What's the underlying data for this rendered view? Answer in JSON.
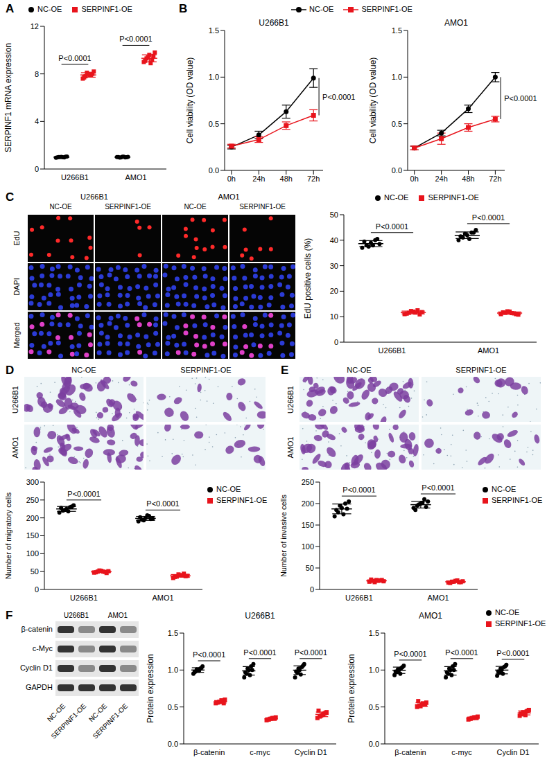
{
  "chart_data": [
    {
      "panel": "A",
      "type": "dot",
      "categories": [
        "U266B1",
        "AMO1"
      ],
      "ylabel": "SERPINF1 mRNA expression",
      "ylim": [
        0,
        12
      ],
      "yticks": [
        0,
        4,
        8,
        12
      ],
      "annotations": [
        "P<0.0001",
        "P<0.0001"
      ],
      "legend": "top",
      "series": [
        {
          "name": "NC-OE",
          "color": "#000000",
          "marker": "circle",
          "values": [
            [
              0.95,
              1.0,
              1.02,
              0.98,
              1.05,
              0.97,
              1.01,
              0.99,
              1.03
            ],
            [
              1.0,
              0.96,
              1.04,
              0.98,
              1.02,
              1.0,
              0.97,
              1.03,
              0.99
            ]
          ]
        },
        {
          "name": "SERPINF1-OE",
          "color": "#e8141c",
          "marker": "square",
          "values": [
            [
              7.6,
              7.8,
              8.0,
              7.9,
              8.2,
              7.7,
              8.1,
              7.9,
              8.0
            ],
            [
              9.0,
              9.3,
              9.6,
              9.2,
              9.8,
              9.1,
              9.4,
              8.9,
              9.5
            ]
          ]
        }
      ]
    },
    {
      "panel": "B",
      "type": "line",
      "title": "U266B1",
      "categories": [
        "0h",
        "24h",
        "48h",
        "72h"
      ],
      "ylabel": "Cell viability (OD value)",
      "ylim": [
        0,
        1.5
      ],
      "yticks": [
        {
          "value": 0,
          "label": "0.0"
        },
        {
          "value": 0.5,
          "label": "0.5"
        },
        {
          "value": 1,
          "label": "1.0"
        },
        {
          "value": 1.5,
          "label": "1.5"
        }
      ],
      "annotations": [
        "P<0.0001"
      ],
      "legend": "top",
      "series": [
        {
          "name": "NC-OE",
          "color": "#000000",
          "marker": "circle",
          "values": [
            0.25,
            0.38,
            0.63,
            0.99
          ],
          "error": [
            0.02,
            0.04,
            0.07,
            0.1
          ]
        },
        {
          "name": "SERPINF1-OE",
          "color": "#e8141c",
          "marker": "square",
          "values": [
            0.26,
            0.33,
            0.48,
            0.59
          ],
          "error": [
            0.02,
            0.03,
            0.04,
            0.06
          ]
        }
      ]
    },
    {
      "type": "line",
      "title": "AMO1",
      "categories": [
        "0h",
        "24h",
        "48h",
        "72h"
      ],
      "ylabel": "Cell viability (OD value)",
      "ylim": [
        0,
        1.5
      ],
      "yticks": [
        {
          "value": 0,
          "label": "0.0"
        },
        {
          "value": 0.5,
          "label": "0.5"
        },
        {
          "value": 1,
          "label": "1.0"
        },
        {
          "value": 1.5,
          "label": "1.5"
        }
      ],
      "annotations": [
        "P<0.0001"
      ],
      "series": [
        {
          "name": "NC-OE",
          "color": "#000000",
          "marker": "circle",
          "values": [
            0.24,
            0.4,
            0.66,
            1.0
          ],
          "error": [
            0.02,
            0.03,
            0.04,
            0.05
          ]
        },
        {
          "name": "SERPINF1-OE",
          "color": "#e8141c",
          "marker": "square",
          "values": [
            0.24,
            0.34,
            0.46,
            0.55
          ],
          "error": [
            0.02,
            0.06,
            0.04,
            0.03
          ]
        }
      ]
    },
    {
      "type": "dot",
      "categories": [
        "U266B1",
        "AMO1"
      ],
      "ylabel": "EdU positive cells (%)",
      "ylim": [
        0,
        50
      ],
      "yticks": [
        0,
        10,
        20,
        30,
        40,
        50
      ],
      "annotations": [
        "P<0.0001",
        "P<0.0001"
      ],
      "legend": "top",
      "series": [
        {
          "name": "NC-OE",
          "color": "#000000",
          "marker": "circle",
          "values": [
            [
              37,
              38,
              39,
              40,
              38.5,
              39.5,
              37.5,
              38,
              40.5
            ],
            [
              40,
              41,
              42,
              43,
              44,
              41.5,
              42.5,
              40.5,
              43
            ]
          ]
        },
        {
          "name": "SERPINF1-OE",
          "color": "#e8141c",
          "marker": "square",
          "values": [
            [
              11,
              11.5,
              12,
              12.5,
              11.8,
              11.2,
              12.2,
              11.6,
              10.9
            ],
            [
              11,
              11.5,
              12,
              11.3,
              10.8,
              11.7,
              12.1,
              11.4,
              11
            ]
          ]
        }
      ]
    },
    {
      "type": "dot",
      "categories": [
        "U266B1",
        "AMO1"
      ],
      "ylabel": "Number of migratory cells",
      "ylim": [
        0,
        300
      ],
      "yticks": [
        0,
        50,
        100,
        150,
        200,
        250,
        300
      ],
      "annotations": [
        "P<0.0001",
        "P<0.0001"
      ],
      "legend": "right",
      "series": [
        {
          "name": "NC-OE",
          "color": "#000000",
          "marker": "circle",
          "values": [
            [
              215,
              220,
              225,
              230,
              235,
              228,
              222,
              218,
              232
            ],
            [
              190,
              195,
              200,
              205,
              198,
              202,
              193,
              207,
              197
            ]
          ]
        },
        {
          "name": "SERPINF1-OE",
          "color": "#e8141c",
          "marker": "square",
          "values": [
            [
              47,
              50,
              52,
              49,
              51,
              48,
              53,
              50,
              46
            ],
            [
              32,
              36,
              40,
              44,
              38,
              35,
              42,
              39,
              37
            ]
          ]
        }
      ]
    },
    {
      "type": "dot",
      "categories": [
        "U266B1",
        "AMO1"
      ],
      "ylabel": "Number of invasive cells",
      "ylim": [
        0,
        250
      ],
      "yticks": [
        0,
        50,
        100,
        150,
        200,
        250
      ],
      "annotations": [
        "P<0.0001",
        "P<0.0001"
      ],
      "legend": "right",
      "series": [
        {
          "name": "NC-OE",
          "color": "#000000",
          "marker": "circle",
          "values": [
            [
              170,
              180,
              190,
              200,
              205,
              185,
              195,
              175,
              188
            ],
            [
              190,
              195,
              200,
              210,
              205,
              185,
              198,
              202,
              192
            ]
          ]
        },
        {
          "name": "SERPINF1-OE",
          "color": "#e8141c",
          "marker": "square",
          "values": [
            [
              18,
              20,
              22,
              21,
              19,
              23,
              17,
              20,
              22
            ],
            [
              16,
              18,
              20,
              17,
              19,
              15,
              18,
              21,
              17
            ]
          ]
        }
      ]
    },
    {
      "type": "dot",
      "title": "U266B1",
      "categories": [
        "β-catenin",
        "c-myc",
        "Cyclin D1"
      ],
      "ylabel": "Protein expression",
      "ylim": [
        0,
        1.5
      ],
      "yticks": [
        {
          "value": 0,
          "label": "0.0"
        },
        {
          "value": 0.5,
          "label": "0.5"
        },
        {
          "value": 1,
          "label": "1.0"
        },
        {
          "value": 1.5,
          "label": "1.5"
        }
      ],
      "annotations": [
        "P<0.0001",
        "P<0.0001",
        "P<0.0001"
      ],
      "series": [
        {
          "name": "NC-OE",
          "color": "#000000",
          "marker": "circle",
          "values": [
            [
              0.95,
              0.98,
              1.0,
              1.02,
              1.05,
              0.97,
              1.01,
              0.99,
              1.03
            ],
            [
              0.9,
              0.95,
              1.0,
              1.05,
              1.08,
              0.97,
              1.02,
              0.93,
              1.0
            ],
            [
              0.9,
              0.96,
              1.0,
              1.04,
              1.08,
              0.98,
              1.02,
              0.94,
              1.06
            ]
          ]
        },
        {
          "name": "SERPINF1-OE",
          "color": "#e8141c",
          "marker": "square",
          "values": [
            [
              0.55,
              0.56,
              0.57,
              0.58,
              0.6,
              0.56,
              0.57,
              0.59,
              0.55
            ],
            [
              0.32,
              0.33,
              0.34,
              0.35,
              0.36,
              0.33,
              0.34,
              0.35,
              0.34
            ],
            [
              0.35,
              0.37,
              0.39,
              0.41,
              0.43,
              0.45,
              0.38,
              0.4,
              0.42
            ]
          ]
        }
      ]
    },
    {
      "type": "dot",
      "title": "AMO1",
      "categories": [
        "β-catenin",
        "c-myc",
        "Cyclin D1"
      ],
      "ylabel": "Protein expression",
      "ylim": [
        0,
        1.5
      ],
      "yticks": [
        {
          "value": 0,
          "label": "0.0"
        },
        {
          "value": 0.5,
          "label": "0.5"
        },
        {
          "value": 1,
          "label": "1.0"
        },
        {
          "value": 1.5,
          "label": "1.5"
        }
      ],
      "annotations": [
        "P<0.0001",
        "P<0.0001",
        "P<0.0001"
      ],
      "legend": "right",
      "series": [
        {
          "name": "NC-OE",
          "color": "#000000",
          "marker": "circle",
          "values": [
            [
              0.93,
              0.97,
              1.0,
              1.03,
              1.06,
              0.98,
              1.01,
              0.95,
              1.04
            ],
            [
              0.9,
              0.95,
              1.0,
              1.05,
              1.08,
              0.97,
              1.02,
              0.93,
              1.0
            ],
            [
              0.92,
              0.96,
              1.0,
              1.04,
              1.07,
              0.98,
              1.02,
              0.95,
              1.05
            ]
          ]
        },
        {
          "name": "SERPINF1-OE",
          "color": "#e8141c",
          "marker": "square",
          "values": [
            [
              0.5,
              0.52,
              0.53,
              0.54,
              0.56,
              0.58,
              0.51,
              0.55,
              0.53
            ],
            [
              0.33,
              0.34,
              0.35,
              0.36,
              0.37,
              0.34,
              0.35,
              0.36,
              0.35
            ],
            [
              0.38,
              0.4,
              0.42,
              0.44,
              0.46,
              0.41,
              0.43,
              0.39,
              0.45
            ]
          ]
        }
      ]
    }
  ],
  "images": {
    "C": {
      "panel": "C",
      "rows": [
        "EdU",
        "DAPI",
        "Merged"
      ],
      "groups": [
        "U266B1",
        "AMO1"
      ],
      "columns": [
        "NC-OE",
        "SERPINF1-OE"
      ]
    },
    "D": {
      "panel": "D",
      "rows": [
        "U266B1",
        "AMO1"
      ],
      "columns": [
        "NC-OE",
        "SERPINF1-OE"
      ]
    },
    "E": {
      "panel": "E",
      "rows": [
        "U266B1",
        "AMO1"
      ],
      "columns": [
        "NC-OE",
        "SERPINF1-OE"
      ]
    },
    "F": {
      "panel": "F",
      "groups": [
        "U266B1",
        "AMO1"
      ],
      "rows": [
        "β-catenin",
        "c-Myc",
        "Cyclin D1",
        "GAPDH"
      ],
      "lanes": [
        "NC-OE",
        "SERPINF1-OE",
        "NC-OE",
        "SERPINF1-OE"
      ]
    }
  }
}
